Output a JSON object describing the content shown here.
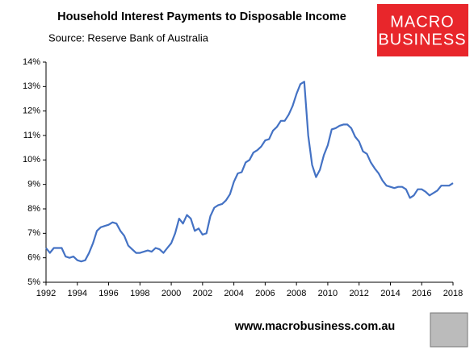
{
  "chart_data": {
    "type": "line",
    "title": "Household Interest Payments to Disposable Income",
    "subtitle": "Source: Reserve Bank of Australia",
    "logo": [
      "MACRO",
      "BUSINESS"
    ],
    "annotations": [
      "www.macrobusiness.com.au"
    ],
    "color": "#4472c4",
    "x": [
      1992,
      1992.25,
      1992.5,
      1993,
      1993.25,
      1993.5,
      1993.75,
      1994,
      1994.25,
      1994.5,
      1994.75,
      1995,
      1995.25,
      1995.5,
      1995.75,
      1996,
      1996.25,
      1996.5,
      1996.75,
      1997,
      1997.25,
      1997.5,
      1997.75,
      1998,
      1998.5,
      1998.75,
      1999,
      1999.25,
      1999.5,
      1999.75,
      2000,
      2000.25,
      2000.5,
      2000.75,
      2001,
      2001.25,
      2001.5,
      2001.75,
      2002,
      2002.25,
      2002.5,
      2002.75,
      2003,
      2003.25,
      2003.5,
      2003.75,
      2004,
      2004.25,
      2004.5,
      2004.75,
      2005,
      2005.25,
      2005.5,
      2005.75,
      2006,
      2006.25,
      2006.5,
      2006.75,
      2007,
      2007.25,
      2007.5,
      2007.75,
      2008,
      2008.25,
      2008.5,
      2008.75,
      2009,
      2009.25,
      2009.5,
      2009.75,
      2010,
      2010.25,
      2010.5,
      2010.75,
      2011,
      2011.25,
      2011.5,
      2011.75,
      2012,
      2012.25,
      2012.5,
      2012.75,
      2013,
      2013.25,
      2013.5,
      2013.75,
      2014,
      2014.25,
      2014.5,
      2014.75,
      2015,
      2015.25,
      2015.5,
      2015.75,
      2016,
      2016.25,
      2016.5,
      2016.75,
      2017,
      2017.25,
      2017.5,
      2017.75,
      2018
    ],
    "values": [
      6.4,
      6.2,
      6.4,
      6.4,
      6.05,
      6.0,
      6.05,
      5.9,
      5.85,
      5.9,
      6.2,
      6.6,
      7.1,
      7.25,
      7.3,
      7.35,
      7.45,
      7.4,
      7.1,
      6.9,
      6.5,
      6.35,
      6.2,
      6.2,
      6.3,
      6.25,
      6.4,
      6.35,
      6.2,
      6.4,
      6.6,
      7.0,
      7.6,
      7.4,
      7.75,
      7.6,
      7.1,
      7.2,
      6.95,
      7.0,
      7.7,
      8.05,
      8.15,
      8.2,
      8.35,
      8.6,
      9.1,
      9.45,
      9.5,
      9.9,
      10.0,
      10.3,
      10.4,
      10.55,
      10.8,
      10.85,
      11.2,
      11.35,
      11.6,
      11.6,
      11.85,
      12.2,
      12.7,
      13.1,
      13.2,
      11.0,
      9.8,
      9.3,
      9.6,
      10.2,
      10.6,
      11.25,
      11.3,
      11.4,
      11.45,
      11.45,
      11.3,
      10.95,
      10.75,
      10.35,
      10.25,
      9.9,
      9.65,
      9.45,
      9.15,
      8.95,
      8.9,
      8.85,
      8.9,
      8.9,
      8.8,
      8.45,
      8.55,
      8.8,
      8.8,
      8.7,
      8.55,
      8.65,
      8.75,
      8.95,
      8.95,
      8.95,
      9.05
    ],
    "xlim": [
      1992,
      2018
    ],
    "xticks": [
      1992,
      1994,
      1996,
      1998,
      2000,
      2002,
      2004,
      2006,
      2008,
      2010,
      2012,
      2014,
      2016,
      2018
    ],
    "ylim": [
      5,
      14
    ],
    "yticks": [
      {
        "value": 5,
        "label": "5%"
      },
      {
        "value": 6,
        "label": "6%"
      },
      {
        "value": 7,
        "label": "7%"
      },
      {
        "value": 8,
        "label": "8%"
      },
      {
        "value": 9,
        "label": "9%"
      },
      {
        "value": 10,
        "label": "10%"
      },
      {
        "value": 11,
        "label": "11%"
      },
      {
        "value": 12,
        "label": "12%"
      },
      {
        "value": 13,
        "label": "13%"
      },
      {
        "value": 14,
        "label": "14%"
      }
    ]
  }
}
